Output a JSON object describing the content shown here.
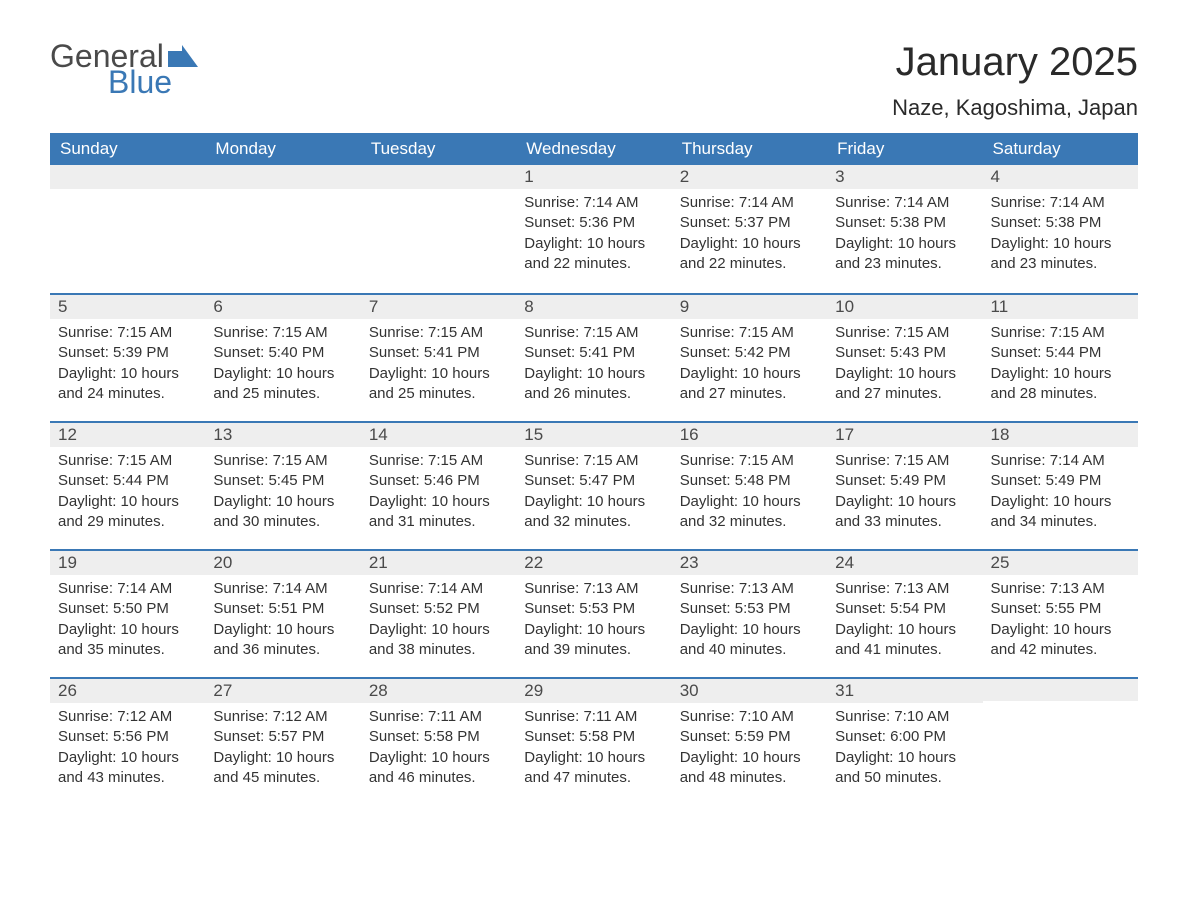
{
  "logo": {
    "word1": "General",
    "word2": "Blue",
    "flag_color": "#3a78b5"
  },
  "title": "January 2025",
  "location": "Naze, Kagoshima, Japan",
  "colors": {
    "header_bg": "#3a78b5",
    "header_text": "#ffffff",
    "daynum_bg": "#eeeeee",
    "row_border": "#3a78b5",
    "text": "#333333"
  },
  "day_headers": [
    "Sunday",
    "Monday",
    "Tuesday",
    "Wednesday",
    "Thursday",
    "Friday",
    "Saturday"
  ],
  "weeks": [
    [
      null,
      null,
      null,
      {
        "n": "1",
        "sunrise": "7:14 AM",
        "sunset": "5:36 PM",
        "daylight": "10 hours and 22 minutes."
      },
      {
        "n": "2",
        "sunrise": "7:14 AM",
        "sunset": "5:37 PM",
        "daylight": "10 hours and 22 minutes."
      },
      {
        "n": "3",
        "sunrise": "7:14 AM",
        "sunset": "5:38 PM",
        "daylight": "10 hours and 23 minutes."
      },
      {
        "n": "4",
        "sunrise": "7:14 AM",
        "sunset": "5:38 PM",
        "daylight": "10 hours and 23 minutes."
      }
    ],
    [
      {
        "n": "5",
        "sunrise": "7:15 AM",
        "sunset": "5:39 PM",
        "daylight": "10 hours and 24 minutes."
      },
      {
        "n": "6",
        "sunrise": "7:15 AM",
        "sunset": "5:40 PM",
        "daylight": "10 hours and 25 minutes."
      },
      {
        "n": "7",
        "sunrise": "7:15 AM",
        "sunset": "5:41 PM",
        "daylight": "10 hours and 25 minutes."
      },
      {
        "n": "8",
        "sunrise": "7:15 AM",
        "sunset": "5:41 PM",
        "daylight": "10 hours and 26 minutes."
      },
      {
        "n": "9",
        "sunrise": "7:15 AM",
        "sunset": "5:42 PM",
        "daylight": "10 hours and 27 minutes."
      },
      {
        "n": "10",
        "sunrise": "7:15 AM",
        "sunset": "5:43 PM",
        "daylight": "10 hours and 27 minutes."
      },
      {
        "n": "11",
        "sunrise": "7:15 AM",
        "sunset": "5:44 PM",
        "daylight": "10 hours and 28 minutes."
      }
    ],
    [
      {
        "n": "12",
        "sunrise": "7:15 AM",
        "sunset": "5:44 PM",
        "daylight": "10 hours and 29 minutes."
      },
      {
        "n": "13",
        "sunrise": "7:15 AM",
        "sunset": "5:45 PM",
        "daylight": "10 hours and 30 minutes."
      },
      {
        "n": "14",
        "sunrise": "7:15 AM",
        "sunset": "5:46 PM",
        "daylight": "10 hours and 31 minutes."
      },
      {
        "n": "15",
        "sunrise": "7:15 AM",
        "sunset": "5:47 PM",
        "daylight": "10 hours and 32 minutes."
      },
      {
        "n": "16",
        "sunrise": "7:15 AM",
        "sunset": "5:48 PM",
        "daylight": "10 hours and 32 minutes."
      },
      {
        "n": "17",
        "sunrise": "7:15 AM",
        "sunset": "5:49 PM",
        "daylight": "10 hours and 33 minutes."
      },
      {
        "n": "18",
        "sunrise": "7:14 AM",
        "sunset": "5:49 PM",
        "daylight": "10 hours and 34 minutes."
      }
    ],
    [
      {
        "n": "19",
        "sunrise": "7:14 AM",
        "sunset": "5:50 PM",
        "daylight": "10 hours and 35 minutes."
      },
      {
        "n": "20",
        "sunrise": "7:14 AM",
        "sunset": "5:51 PM",
        "daylight": "10 hours and 36 minutes."
      },
      {
        "n": "21",
        "sunrise": "7:14 AM",
        "sunset": "5:52 PM",
        "daylight": "10 hours and 38 minutes."
      },
      {
        "n": "22",
        "sunrise": "7:13 AM",
        "sunset": "5:53 PM",
        "daylight": "10 hours and 39 minutes."
      },
      {
        "n": "23",
        "sunrise": "7:13 AM",
        "sunset": "5:53 PM",
        "daylight": "10 hours and 40 minutes."
      },
      {
        "n": "24",
        "sunrise": "7:13 AM",
        "sunset": "5:54 PM",
        "daylight": "10 hours and 41 minutes."
      },
      {
        "n": "25",
        "sunrise": "7:13 AM",
        "sunset": "5:55 PM",
        "daylight": "10 hours and 42 minutes."
      }
    ],
    [
      {
        "n": "26",
        "sunrise": "7:12 AM",
        "sunset": "5:56 PM",
        "daylight": "10 hours and 43 minutes."
      },
      {
        "n": "27",
        "sunrise": "7:12 AM",
        "sunset": "5:57 PM",
        "daylight": "10 hours and 45 minutes."
      },
      {
        "n": "28",
        "sunrise": "7:11 AM",
        "sunset": "5:58 PM",
        "daylight": "10 hours and 46 minutes."
      },
      {
        "n": "29",
        "sunrise": "7:11 AM",
        "sunset": "5:58 PM",
        "daylight": "10 hours and 47 minutes."
      },
      {
        "n": "30",
        "sunrise": "7:10 AM",
        "sunset": "5:59 PM",
        "daylight": "10 hours and 48 minutes."
      },
      {
        "n": "31",
        "sunrise": "7:10 AM",
        "sunset": "6:00 PM",
        "daylight": "10 hours and 50 minutes."
      },
      null
    ]
  ],
  "labels": {
    "sunrise": "Sunrise: ",
    "sunset": "Sunset: ",
    "daylight": "Daylight: "
  }
}
